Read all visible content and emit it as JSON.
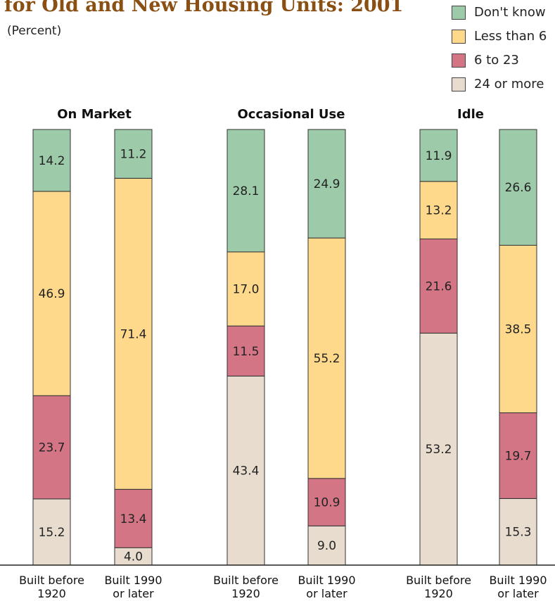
{
  "title": "for Old and New Housing Units: 2001",
  "units_label": "(Percent)",
  "legend": [
    {
      "label": "Don't know",
      "color": "#9dcbaa"
    },
    {
      "label": "Less than 6",
      "color": "#fed98c"
    },
    {
      "label": "6 to 23",
      "color": "#d37585"
    },
    {
      "label": "24 or more",
      "color": "#e7dccd"
    }
  ],
  "chart_data": {
    "type": "bar",
    "stacked": true,
    "panels": [
      {
        "title": "On Market",
        "categories": [
          [
            "Built before",
            "1920"
          ],
          [
            "Built 1990",
            "or later"
          ]
        ],
        "series": [
          {
            "name": "24 or more",
            "values": [
              15.2,
              4.0
            ]
          },
          {
            "name": "6 to 23",
            "values": [
              23.7,
              13.4
            ]
          },
          {
            "name": "Less than 6",
            "values": [
              46.9,
              71.4
            ]
          },
          {
            "name": "Don't know",
            "values": [
              14.2,
              11.2
            ]
          }
        ]
      },
      {
        "title": "Occasional Use",
        "categories": [
          [
            "Built before",
            "1920"
          ],
          [
            "Built 1990",
            "or later"
          ]
        ],
        "series": [
          {
            "name": "24 or more",
            "values": [
              43.4,
              9.0
            ]
          },
          {
            "name": "6 to 23",
            "values": [
              11.5,
              10.9
            ]
          },
          {
            "name": "Less than 6",
            "values": [
              17.0,
              55.2
            ]
          },
          {
            "name": "Don't know",
            "values": [
              28.1,
              24.9
            ]
          }
        ]
      },
      {
        "title": "Idle",
        "categories": [
          [
            "Built before",
            "1920"
          ],
          [
            "Built 1990",
            "or later"
          ]
        ],
        "series": [
          {
            "name": "24 or more",
            "values": [
              53.2,
              15.3
            ]
          },
          {
            "name": "6 to 23",
            "values": [
              21.6,
              19.7
            ]
          },
          {
            "name": "Less than 6",
            "values": [
              13.2,
              38.5
            ]
          },
          {
            "name": "Don't know",
            "values": [
              11.9,
              26.6
            ]
          }
        ]
      }
    ]
  }
}
